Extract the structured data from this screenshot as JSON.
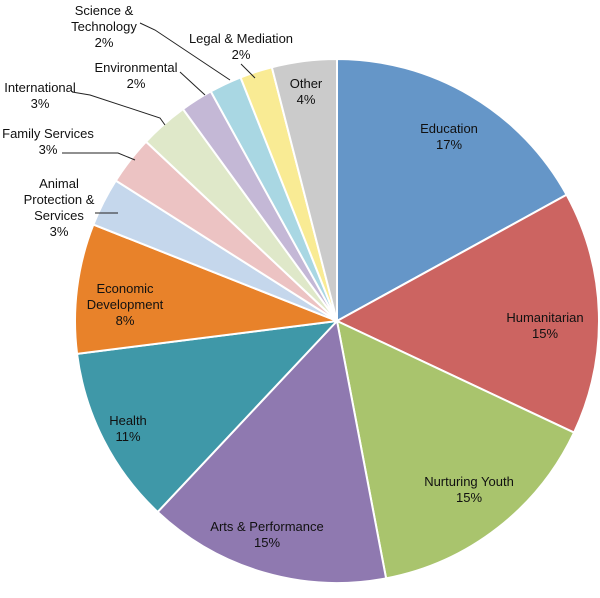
{
  "chart_data": {
    "type": "pie",
    "start_angle_deg": 0,
    "direction": "clockwise",
    "slices": [
      {
        "label": "Education",
        "value_label": "17%",
        "value": 17,
        "color": "#6596c8"
      },
      {
        "label": "Humanitarian",
        "value_label": "15%",
        "value": 15,
        "color": "#cc6461"
      },
      {
        "label": "Nurturing Youth",
        "value_label": "15%",
        "value": 15,
        "color": "#a9c46d"
      },
      {
        "label": "Arts & Performance",
        "value_label": "15%",
        "value": 15,
        "color": "#8f79b0"
      },
      {
        "label": "Health",
        "value_label": "11%",
        "value": 11,
        "color": "#3f98a8"
      },
      {
        "label": "Economic Development",
        "value_label": "8%",
        "value": 8,
        "color": "#e8822a"
      },
      {
        "label": "Animal Protection & Services",
        "value_label": "3%",
        "value": 3,
        "color": "#c5d7ec"
      },
      {
        "label": "Family Services",
        "value_label": "3%",
        "value": 3,
        "color": "#ecc3c3"
      },
      {
        "label": "International",
        "value_label": "3%",
        "value": 3,
        "color": "#dfe8c9"
      },
      {
        "label": "Environmental",
        "value_label": "2%",
        "value": 2,
        "color": "#c4b8d6"
      },
      {
        "label": "Science & Technology",
        "value_label": "2%",
        "value": 2,
        "color": "#a9d7e3"
      },
      {
        "label": "Legal & Mediation",
        "value_label": "2%",
        "value": 2,
        "color": "#f9eb94"
      },
      {
        "label": "Other",
        "value_label": "4%",
        "value": 4,
        "color": "#cbcbcb"
      }
    ]
  }
}
